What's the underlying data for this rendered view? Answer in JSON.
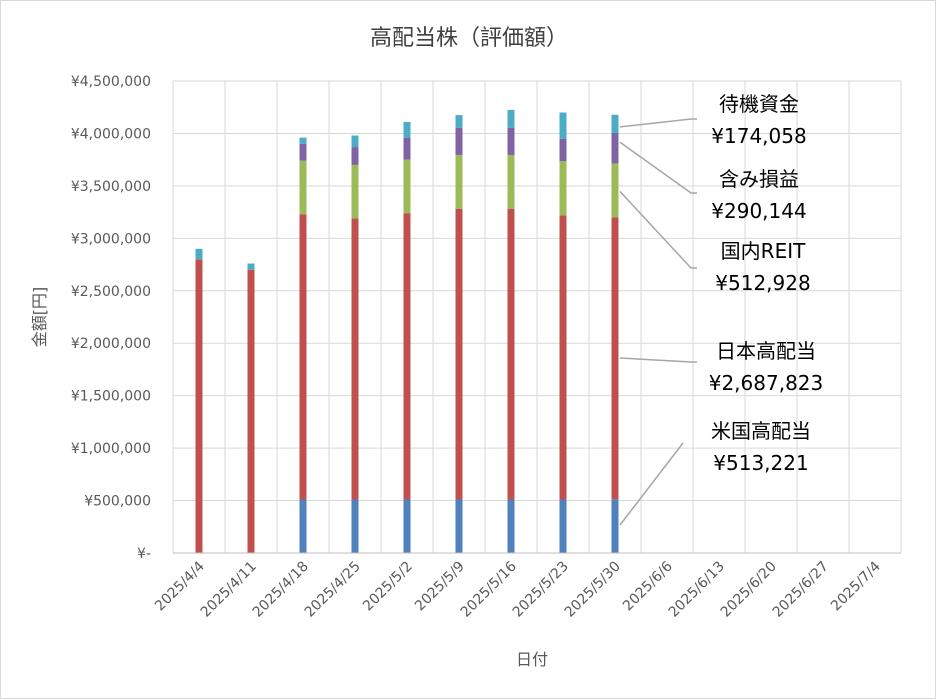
{
  "chart_data": {
    "type": "bar",
    "stacked": true,
    "title": "高配当株（評価額）",
    "xlabel": "日付",
    "ylabel": "金額[円]",
    "ylim": [
      0,
      4500000
    ],
    "y_ticks": [
      "¥-",
      "¥500,000",
      "¥1,000,000",
      "¥1,500,000",
      "¥2,000,000",
      "¥2,500,000",
      "¥3,000,000",
      "¥3,500,000",
      "¥4,000,000",
      "¥4,500,000"
    ],
    "y_tick_values": [
      0,
      500000,
      1000000,
      1500000,
      2000000,
      2500000,
      3000000,
      3500000,
      4000000,
      4500000
    ],
    "categories": [
      "2025/4/4",
      "2025/4/11",
      "2025/4/18",
      "2025/4/25",
      "2025/5/2",
      "2025/5/9",
      "2025/5/16",
      "2025/5/23",
      "2025/5/30",
      "2025/6/6",
      "2025/6/13",
      "2025/6/20",
      "2025/6/27",
      "2025/7/4"
    ],
    "grid": true,
    "series": [
      {
        "name": "米国高配当",
        "color": "#4f81bd",
        "values": [
          0,
          0,
          510000,
          510000,
          510000,
          510000,
          510000,
          510000,
          513221,
          null,
          null,
          null,
          null,
          null
        ]
      },
      {
        "name": "日本高配当",
        "color": "#c0504d",
        "values": [
          2800000,
          2700000,
          2720000,
          2680000,
          2730000,
          2770000,
          2770000,
          2710000,
          2687823,
          null,
          null,
          null,
          null,
          null
        ]
      },
      {
        "name": "国内REIT",
        "color": "#9bbb59",
        "values": [
          0,
          0,
          510000,
          510000,
          510000,
          515000,
          515000,
          515000,
          512928,
          null,
          null,
          null,
          null,
          null
        ]
      },
      {
        "name": "含み損益",
        "color": "#8064a2",
        "values": [
          0,
          0,
          160000,
          170000,
          210000,
          260000,
          260000,
          215000,
          290144,
          null,
          null,
          null,
          null,
          null
        ]
      },
      {
        "name": "待機資金",
        "color": "#4bacc6",
        "values": [
          100000,
          60000,
          60000,
          110000,
          150000,
          120000,
          170000,
          250000,
          174058,
          null,
          null,
          null,
          null,
          null
        ]
      }
    ],
    "annotations": [
      {
        "series": "待機資金",
        "label": "待機資金",
        "value_text": "¥174,058"
      },
      {
        "series": "含み損益",
        "label": "含み損益",
        "value_text": "¥290,144"
      },
      {
        "series": "国内REIT",
        "label": "国内REIT",
        "value_text": "¥512,928"
      },
      {
        "series": "日本高配当",
        "label": "日本高配当",
        "value_text": "¥2,687,823"
      },
      {
        "series": "米国高配当",
        "label": "米国高配当",
        "value_text": "¥513,221"
      }
    ]
  }
}
